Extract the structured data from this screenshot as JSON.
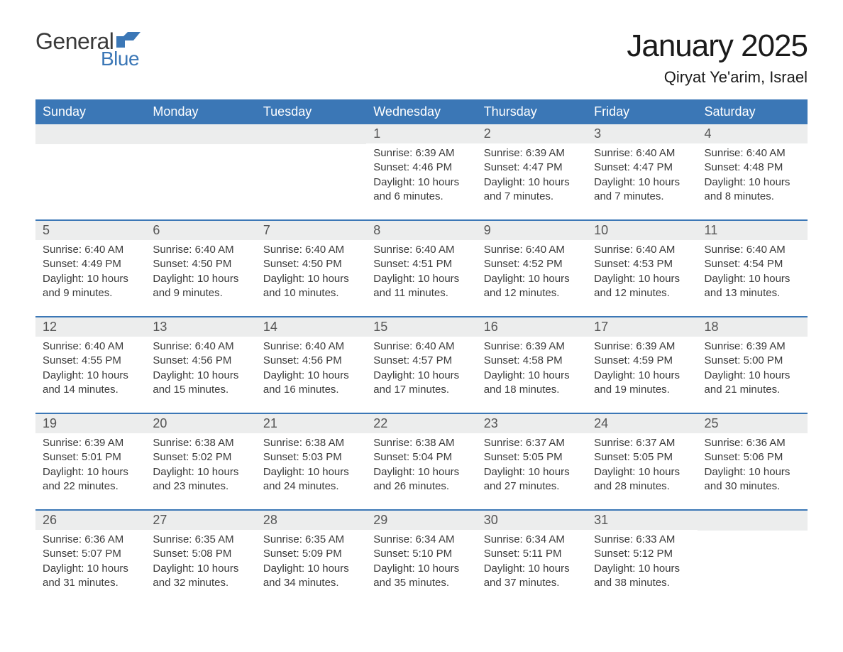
{
  "logo": {
    "text_general": "General",
    "text_blue": "Blue",
    "flag_color": "#3b77b6"
  },
  "title": "January 2025",
  "location": "Qiryat Ye'arim, Israel",
  "colors": {
    "header_bg": "#3b77b6",
    "header_text": "#ffffff",
    "daynum_bg": "#eceded",
    "border": "#3b77b6",
    "body_text": "#3a3a3a",
    "background": "#ffffff"
  },
  "days_of_week": [
    "Sunday",
    "Monday",
    "Tuesday",
    "Wednesday",
    "Thursday",
    "Friday",
    "Saturday"
  ],
  "weeks": [
    [
      {
        "day": "",
        "sunrise": "",
        "sunset": "",
        "daylight": ""
      },
      {
        "day": "",
        "sunrise": "",
        "sunset": "",
        "daylight": ""
      },
      {
        "day": "",
        "sunrise": "",
        "sunset": "",
        "daylight": ""
      },
      {
        "day": "1",
        "sunrise": "Sunrise: 6:39 AM",
        "sunset": "Sunset: 4:46 PM",
        "daylight": "Daylight: 10 hours and 6 minutes."
      },
      {
        "day": "2",
        "sunrise": "Sunrise: 6:39 AM",
        "sunset": "Sunset: 4:47 PM",
        "daylight": "Daylight: 10 hours and 7 minutes."
      },
      {
        "day": "3",
        "sunrise": "Sunrise: 6:40 AM",
        "sunset": "Sunset: 4:47 PM",
        "daylight": "Daylight: 10 hours and 7 minutes."
      },
      {
        "day": "4",
        "sunrise": "Sunrise: 6:40 AM",
        "sunset": "Sunset: 4:48 PM",
        "daylight": "Daylight: 10 hours and 8 minutes."
      }
    ],
    [
      {
        "day": "5",
        "sunrise": "Sunrise: 6:40 AM",
        "sunset": "Sunset: 4:49 PM",
        "daylight": "Daylight: 10 hours and 9 minutes."
      },
      {
        "day": "6",
        "sunrise": "Sunrise: 6:40 AM",
        "sunset": "Sunset: 4:50 PM",
        "daylight": "Daylight: 10 hours and 9 minutes."
      },
      {
        "day": "7",
        "sunrise": "Sunrise: 6:40 AM",
        "sunset": "Sunset: 4:50 PM",
        "daylight": "Daylight: 10 hours and 10 minutes."
      },
      {
        "day": "8",
        "sunrise": "Sunrise: 6:40 AM",
        "sunset": "Sunset: 4:51 PM",
        "daylight": "Daylight: 10 hours and 11 minutes."
      },
      {
        "day": "9",
        "sunrise": "Sunrise: 6:40 AM",
        "sunset": "Sunset: 4:52 PM",
        "daylight": "Daylight: 10 hours and 12 minutes."
      },
      {
        "day": "10",
        "sunrise": "Sunrise: 6:40 AM",
        "sunset": "Sunset: 4:53 PM",
        "daylight": "Daylight: 10 hours and 12 minutes."
      },
      {
        "day": "11",
        "sunrise": "Sunrise: 6:40 AM",
        "sunset": "Sunset: 4:54 PM",
        "daylight": "Daylight: 10 hours and 13 minutes."
      }
    ],
    [
      {
        "day": "12",
        "sunrise": "Sunrise: 6:40 AM",
        "sunset": "Sunset: 4:55 PM",
        "daylight": "Daylight: 10 hours and 14 minutes."
      },
      {
        "day": "13",
        "sunrise": "Sunrise: 6:40 AM",
        "sunset": "Sunset: 4:56 PM",
        "daylight": "Daylight: 10 hours and 15 minutes."
      },
      {
        "day": "14",
        "sunrise": "Sunrise: 6:40 AM",
        "sunset": "Sunset: 4:56 PM",
        "daylight": "Daylight: 10 hours and 16 minutes."
      },
      {
        "day": "15",
        "sunrise": "Sunrise: 6:40 AM",
        "sunset": "Sunset: 4:57 PM",
        "daylight": "Daylight: 10 hours and 17 minutes."
      },
      {
        "day": "16",
        "sunrise": "Sunrise: 6:39 AM",
        "sunset": "Sunset: 4:58 PM",
        "daylight": "Daylight: 10 hours and 18 minutes."
      },
      {
        "day": "17",
        "sunrise": "Sunrise: 6:39 AM",
        "sunset": "Sunset: 4:59 PM",
        "daylight": "Daylight: 10 hours and 19 minutes."
      },
      {
        "day": "18",
        "sunrise": "Sunrise: 6:39 AM",
        "sunset": "Sunset: 5:00 PM",
        "daylight": "Daylight: 10 hours and 21 minutes."
      }
    ],
    [
      {
        "day": "19",
        "sunrise": "Sunrise: 6:39 AM",
        "sunset": "Sunset: 5:01 PM",
        "daylight": "Daylight: 10 hours and 22 minutes."
      },
      {
        "day": "20",
        "sunrise": "Sunrise: 6:38 AM",
        "sunset": "Sunset: 5:02 PM",
        "daylight": "Daylight: 10 hours and 23 minutes."
      },
      {
        "day": "21",
        "sunrise": "Sunrise: 6:38 AM",
        "sunset": "Sunset: 5:03 PM",
        "daylight": "Daylight: 10 hours and 24 minutes."
      },
      {
        "day": "22",
        "sunrise": "Sunrise: 6:38 AM",
        "sunset": "Sunset: 5:04 PM",
        "daylight": "Daylight: 10 hours and 26 minutes."
      },
      {
        "day": "23",
        "sunrise": "Sunrise: 6:37 AM",
        "sunset": "Sunset: 5:05 PM",
        "daylight": "Daylight: 10 hours and 27 minutes."
      },
      {
        "day": "24",
        "sunrise": "Sunrise: 6:37 AM",
        "sunset": "Sunset: 5:05 PM",
        "daylight": "Daylight: 10 hours and 28 minutes."
      },
      {
        "day": "25",
        "sunrise": "Sunrise: 6:36 AM",
        "sunset": "Sunset: 5:06 PM",
        "daylight": "Daylight: 10 hours and 30 minutes."
      }
    ],
    [
      {
        "day": "26",
        "sunrise": "Sunrise: 6:36 AM",
        "sunset": "Sunset: 5:07 PM",
        "daylight": "Daylight: 10 hours and 31 minutes."
      },
      {
        "day": "27",
        "sunrise": "Sunrise: 6:35 AM",
        "sunset": "Sunset: 5:08 PM",
        "daylight": "Daylight: 10 hours and 32 minutes."
      },
      {
        "day": "28",
        "sunrise": "Sunrise: 6:35 AM",
        "sunset": "Sunset: 5:09 PM",
        "daylight": "Daylight: 10 hours and 34 minutes."
      },
      {
        "day": "29",
        "sunrise": "Sunrise: 6:34 AM",
        "sunset": "Sunset: 5:10 PM",
        "daylight": "Daylight: 10 hours and 35 minutes."
      },
      {
        "day": "30",
        "sunrise": "Sunrise: 6:34 AM",
        "sunset": "Sunset: 5:11 PM",
        "daylight": "Daylight: 10 hours and 37 minutes."
      },
      {
        "day": "31",
        "sunrise": "Sunrise: 6:33 AM",
        "sunset": "Sunset: 5:12 PM",
        "daylight": "Daylight: 10 hours and 38 minutes."
      },
      {
        "day": "",
        "sunrise": "",
        "sunset": "",
        "daylight": ""
      }
    ]
  ]
}
